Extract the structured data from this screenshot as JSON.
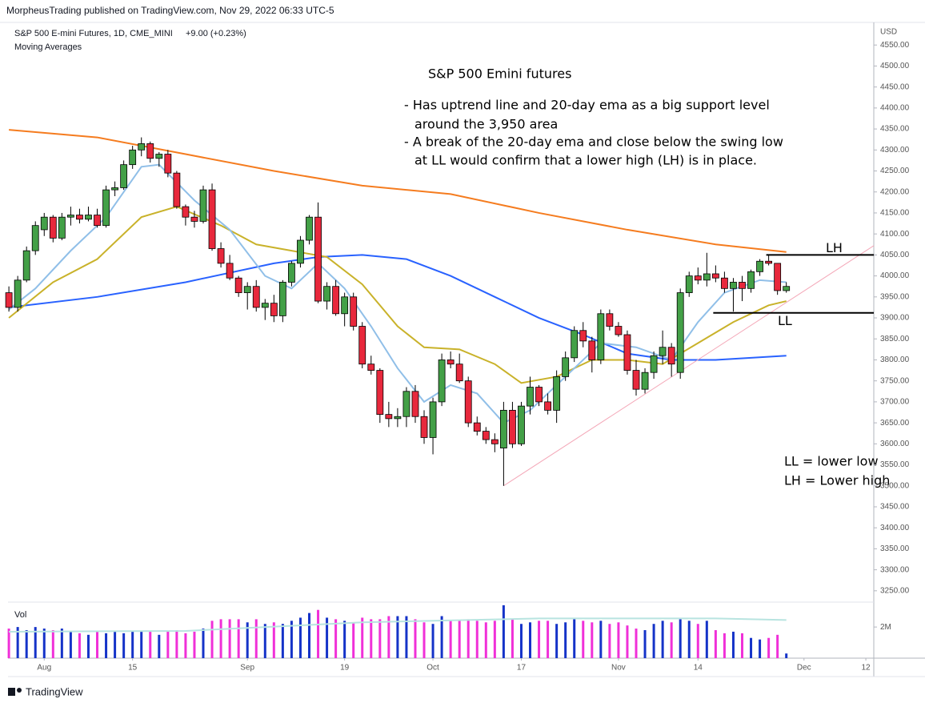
{
  "header": {
    "publisher": "MorpheusTrading published on TradingView.com, Nov 29, 2022 06:33 UTC-5",
    "symbol": "S&P 500 E-mini Futures, 1D, CME_MINI",
    "change": "+9.00 (+0.23%)",
    "indicator": "Moving Averages",
    "currency": "USD",
    "footer": "TradingView"
  },
  "chart_data": [
    {
      "type": "candlestick",
      "title": "S&P 500 Emini futures",
      "notes": [
        "-  Has uptrend line and 20-day ema as a big support level",
        "around the 3,950 area",
        "-  A break of the 20-day ema and close below the swing low",
        "at LL would confirm that a lower high (LH) is in place."
      ],
      "key": [
        "LL = lower low",
        "LH = Lower high"
      ],
      "up_color": "#43a047",
      "down_color": "#e8283c",
      "open": [
        3960,
        3925,
        3990,
        4060,
        4110,
        4140,
        4090,
        4140,
        4145,
        4135,
        4145,
        4120,
        4205,
        4210,
        4265,
        4300,
        4315,
        4280,
        4290,
        4245,
        4165,
        4140,
        4130,
        4205,
        4065,
        4030,
        3995,
        3960,
        3975,
        3925,
        3935,
        3905,
        3985,
        4030,
        4085,
        4140,
        3940,
        3975,
        3910,
        3950,
        3880,
        3790,
        3775,
        3670,
        3660,
        3665,
        3725,
        3665,
        3615,
        3700,
        3800,
        3790,
        3750,
        3650,
        3630,
        3610,
        3590,
        3680,
        3600,
        3690,
        3735,
        3700,
        3680,
        3760,
        3805,
        3870,
        3845,
        3800,
        3910,
        3880,
        3860,
        3775,
        3730,
        3770,
        3810,
        3830,
        3770,
        3960,
        4000,
        3990,
        4005,
        3995,
        3970,
        3985,
        3970,
        4010,
        4035,
        4030,
        3965
      ],
      "high": [
        3975,
        4000,
        4070,
        4130,
        4150,
        4145,
        4150,
        4165,
        4160,
        4165,
        4160,
        4215,
        4225,
        4275,
        4310,
        4330,
        4320,
        4295,
        4300,
        4250,
        4170,
        4155,
        4215,
        4220,
        4080,
        4050,
        4000,
        3985,
        3990,
        3945,
        3955,
        3990,
        4035,
        4095,
        4145,
        4175,
        3985,
        3990,
        3960,
        3960,
        3890,
        3810,
        3780,
        3700,
        3685,
        3735,
        3740,
        3680,
        3710,
        3815,
        3820,
        3815,
        3760,
        3665,
        3640,
        3625,
        3700,
        3700,
        3700,
        3760,
        3740,
        3720,
        3775,
        3820,
        3880,
        3890,
        3855,
        3920,
        3920,
        3890,
        3870,
        3800,
        3780,
        3820,
        3870,
        3840,
        3970,
        4010,
        4020,
        4055,
        4025,
        4010,
        3995,
        4000,
        4015,
        4040,
        4050,
        4030,
        3985
      ],
      "low": [
        3915,
        3915,
        3985,
        4050,
        4095,
        4080,
        4085,
        4120,
        4125,
        4130,
        4115,
        4115,
        4190,
        4205,
        4255,
        4285,
        4270,
        4260,
        4235,
        4160,
        4120,
        4115,
        4125,
        4060,
        4020,
        3990,
        3950,
        3920,
        3915,
        3895,
        3890,
        3890,
        3975,
        4020,
        4075,
        3935,
        3920,
        3905,
        3880,
        3870,
        3780,
        3765,
        3650,
        3640,
        3640,
        3640,
        3650,
        3600,
        3575,
        3690,
        3780,
        3745,
        3640,
        3620,
        3600,
        3580,
        3500,
        3590,
        3595,
        3670,
        3690,
        3670,
        3650,
        3750,
        3795,
        3830,
        3770,
        3790,
        3870,
        3855,
        3765,
        3715,
        3720,
        3755,
        3790,
        3760,
        3755,
        3950,
        3980,
        3975,
        3985,
        3960,
        3915,
        3940,
        3960,
        4000,
        4025,
        3955,
        3960
      ],
      "close": [
        3925,
        3990,
        4060,
        4120,
        4140,
        4090,
        4140,
        4145,
        4135,
        4145,
        4120,
        4205,
        4210,
        4265,
        4300,
        4315,
        4280,
        4290,
        4245,
        4165,
        4140,
        4130,
        4205,
        4065,
        4030,
        3995,
        3960,
        3975,
        3925,
        3935,
        3905,
        3985,
        4030,
        4085,
        4140,
        3940,
        3975,
        3910,
        3950,
        3880,
        3790,
        3775,
        3670,
        3660,
        3665,
        3725,
        3665,
        3615,
        3700,
        3800,
        3790,
        3750,
        3650,
        3630,
        3610,
        3600,
        3680,
        3600,
        3690,
        3735,
        3700,
        3680,
        3760,
        3805,
        3870,
        3845,
        3800,
        3910,
        3880,
        3860,
        3775,
        3730,
        3770,
        3810,
        3830,
        3790,
        3960,
        4000,
        3990,
        4005,
        3995,
        3970,
        3985,
        3970,
        4010,
        4035,
        4030,
        3965,
        3975
      ],
      "lines": [
        {
          "color": "#f57c1f",
          "x": [
            0,
            10,
            20,
            30,
            40,
            50,
            60,
            70,
            80,
            88
          ],
          "values": [
            4348,
            4330,
            4290,
            4250,
            4215,
            4195,
            4150,
            4110,
            4075,
            4057
          ]
        },
        {
          "color": "#2962ff",
          "x": [
            0,
            10,
            20,
            30,
            35,
            40,
            45,
            50,
            55,
            60,
            65,
            70,
            75,
            80,
            88
          ],
          "values": [
            3925,
            3950,
            3985,
            4030,
            4045,
            4050,
            4040,
            4000,
            3950,
            3900,
            3860,
            3815,
            3800,
            3800,
            3810
          ]
        },
        {
          "color": "#c9b22a",
          "x": [
            0,
            5,
            10,
            15,
            19,
            24,
            28,
            32,
            36,
            40,
            44,
            47,
            51,
            55,
            58,
            62,
            66,
            70,
            74,
            78,
            82,
            86,
            88
          ],
          "values": [
            3900,
            3985,
            4040,
            4140,
            4165,
            4120,
            4075,
            4060,
            4045,
            3980,
            3880,
            3830,
            3825,
            3790,
            3745,
            3760,
            3800,
            3800,
            3790,
            3840,
            3890,
            3930,
            3940
          ]
        },
        {
          "color": "#90bfe8",
          "x": [
            0,
            3,
            7,
            11,
            15,
            17,
            21,
            25,
            29,
            32,
            35,
            38,
            41,
            44,
            47,
            50,
            53,
            56,
            59,
            63,
            67,
            71,
            75,
            78,
            81,
            85,
            88
          ],
          "values": [
            3920,
            3970,
            4060,
            4140,
            4260,
            4265,
            4180,
            4110,
            4000,
            3970,
            4030,
            3970,
            3880,
            3780,
            3700,
            3740,
            3720,
            3650,
            3680,
            3760,
            3840,
            3830,
            3800,
            3890,
            3960,
            3990,
            3985
          ]
        }
      ],
      "trendline": {
        "color": "#f4a8b8",
        "x": [
          56,
          97.9
        ],
        "values": [
          3500,
          4072
        ]
      },
      "levels": [
        {
          "label": "LH",
          "value": 4050,
          "from": 86
        },
        {
          "label": "LL",
          "value": 3912,
          "from": 80
        }
      ],
      "xlim": [
        -0.1,
        97.9
      ],
      "xticks": [
        {
          "value": 4,
          "label": "Aug"
        },
        {
          "value": 14,
          "label": "15"
        },
        {
          "value": 27,
          "label": "Sep"
        },
        {
          "value": 38,
          "label": "19"
        },
        {
          "value": 48,
          "label": "Oct"
        },
        {
          "value": 58,
          "label": "17"
        },
        {
          "value": 69,
          "label": "Nov"
        },
        {
          "value": 78,
          "label": "14"
        },
        {
          "value": 90,
          "label": "Dec"
        },
        {
          "value": 97,
          "label": "12"
        }
      ],
      "ylim": [
        3223,
        4600
      ],
      "yticks": [
        {
          "value": 3250,
          "label": "3250.00"
        },
        {
          "value": 3300,
          "label": "3300.00"
        },
        {
          "value": 3350,
          "label": "3350.00"
        },
        {
          "value": 3400,
          "label": "3400.00"
        },
        {
          "value": 3450,
          "label": "3450.00"
        },
        {
          "value": 3500,
          "label": "3500.00"
        },
        {
          "value": 3550,
          "label": "3550.00"
        },
        {
          "value": 3600,
          "label": "3600.00"
        },
        {
          "value": 3650,
          "label": "3650.00"
        },
        {
          "value": 3700,
          "label": "3700.00"
        },
        {
          "value": 3750,
          "label": "3750.00"
        },
        {
          "value": 3800,
          "label": "3800.00"
        },
        {
          "value": 3850,
          "label": "3850.00"
        },
        {
          "value": 3900,
          "label": "3900.00"
        },
        {
          "value": 3950,
          "label": "3950.00"
        },
        {
          "value": 4000,
          "label": "4000.00"
        },
        {
          "value": 4050,
          "label": "4050.00"
        },
        {
          "value": 4100,
          "label": "4100.00"
        },
        {
          "value": 4150,
          "label": "4150.00"
        },
        {
          "value": 4200,
          "label": "4200.00"
        },
        {
          "value": 4250,
          "label": "4250.00"
        },
        {
          "value": 4300,
          "label": "4300.00"
        },
        {
          "value": 4350,
          "label": "4350.00"
        },
        {
          "value": 4400,
          "label": "4400.00"
        },
        {
          "value": 4450,
          "label": "4450.00"
        },
        {
          "value": 4500,
          "label": "4500.00"
        },
        {
          "value": 4550,
          "label": "4550.00"
        }
      ]
    },
    {
      "type": "bar",
      "title": "Vol",
      "up_color": "#1533c8",
      "down_color": "#f030d8",
      "values": [
        1900000,
        2000000,
        1800000,
        2000000,
        1900000,
        1800000,
        1900000,
        1700000,
        1600000,
        1500000,
        1700000,
        1600000,
        1700000,
        1600000,
        1700000,
        1700000,
        1700000,
        1500000,
        1700000,
        1800000,
        1600000,
        1700000,
        1900000,
        2400000,
        2500000,
        2500000,
        2500000,
        2300000,
        2500000,
        2200000,
        2300000,
        2200000,
        2400000,
        2600000,
        2900000,
        3100000,
        2600000,
        2500000,
        2400000,
        2300000,
        2600000,
        2500000,
        2500000,
        2700000,
        2700000,
        2700000,
        2500000,
        2300000,
        2200000,
        2700000,
        2400000,
        2400000,
        2500000,
        2400000,
        2300000,
        2400000,
        3400000,
        2500000,
        2200000,
        2300000,
        2400000,
        2400000,
        2200000,
        2300000,
        2500000,
        2400000,
        2300000,
        2400000,
        2200000,
        2300000,
        2100000,
        1900000,
        1800000,
        2200000,
        2400000,
        2300000,
        2500000,
        2400000,
        2200000,
        2400000,
        1800000,
        1600000,
        1700000,
        1600000,
        1300000,
        1200000,
        1300000,
        1500000,
        300000
      ],
      "ma": {
        "color": "#b8e4e0",
        "x": [
          0,
          20,
          40,
          60,
          80,
          88
        ],
        "values": [
          1700000,
          1750000,
          2300000,
          2550000,
          2550000,
          2450000
        ]
      },
      "ylim": [
        0,
        3600000
      ],
      "yticks": [
        {
          "value": 2000000,
          "label": "2M"
        }
      ]
    }
  ]
}
